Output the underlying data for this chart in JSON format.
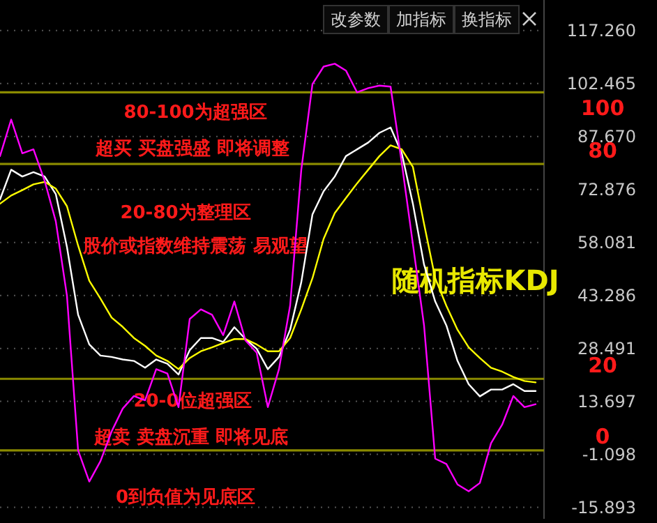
{
  "chart_data": {
    "type": "line",
    "title": "随机指标KDJ",
    "categories": [
      null,
      null,
      null,
      null,
      null,
      null,
      null,
      null,
      null,
      null,
      null,
      null,
      null,
      null,
      null,
      null,
      null,
      null,
      null,
      null,
      null,
      null,
      null,
      null,
      null,
      null,
      null,
      null,
      null,
      null,
      null,
      null,
      null,
      null,
      null,
      null,
      null,
      null,
      null,
      null,
      null,
      null,
      null,
      null,
      null,
      null,
      null,
      null,
      null
    ],
    "series": [
      {
        "color": "#ffffff",
        "values": [
          70.1,
          78.4,
          76.5,
          77.7,
          76.5,
          71.6,
          56.8,
          37.9,
          29.6,
          26.5,
          26.1,
          25.4,
          25.0,
          23.1,
          25.4,
          24.2,
          21.2,
          28.0,
          31.4,
          31.4,
          30.3,
          34.4,
          31.1,
          28.4,
          22.7,
          26.1,
          33.7,
          47.0,
          65.9,
          72.4,
          76.5,
          82.2,
          84.1,
          86.0,
          88.7,
          90.2,
          83.0,
          68.9,
          51.9,
          41.6,
          34.9,
          25.0,
          18.5,
          15.1,
          17.0,
          17.0,
          18.5,
          16.6,
          16.6
        ]
      },
      {
        "color": "#ffff00",
        "values": [
          68.9,
          71.2,
          72.7,
          74.3,
          75.0,
          73.1,
          68.2,
          57.2,
          47.4,
          42.4,
          37.1,
          34.5,
          31.4,
          29.2,
          26.5,
          25.0,
          22.7,
          25.8,
          27.7,
          28.8,
          30.0,
          31.1,
          31.1,
          29.6,
          27.7,
          27.7,
          31.4,
          39.4,
          48.1,
          59.1,
          66.3,
          70.5,
          74.6,
          78.4,
          82.2,
          85.2,
          84.1,
          79.2,
          63.3,
          48.1,
          40.4,
          33.7,
          28.8,
          25.8,
          23.1,
          22.0,
          20.5,
          19.4,
          19.0
        ]
      },
      {
        "color": "#ff00ff",
        "values": [
          82.2,
          92.4,
          83.0,
          84.1,
          75.3,
          64.0,
          43.2,
          0.0,
          -8.7,
          -3.0,
          5.3,
          11.7,
          15.2,
          14.0,
          22.7,
          21.5,
          12.1,
          36.7,
          39.4,
          37.9,
          32.2,
          41.6,
          30.7,
          27.3,
          12.1,
          22.7,
          40.5,
          78.4,
          102.3,
          107.2,
          108.0,
          106.1,
          100.0,
          101.2,
          101.9,
          101.6,
          80.3,
          57.6,
          34.9,
          -2.3,
          -3.8,
          -9.5,
          -11.4,
          -9.1,
          2.0,
          7.2,
          15.2,
          12.1,
          12.9
        ]
      }
    ],
    "ylim": [
      -19.1,
      125.8
    ],
    "yticks": [
      {
        "value": 117.26,
        "label": "117.260"
      },
      102.465,
      {
        "value": 87.67,
        "label": "87.670"
      },
      72.876,
      58.081,
      43.286,
      28.491,
      13.697,
      -1.098,
      -15.893
    ],
    "grid": "y",
    "ref_lines": [
      {
        "axis": "y",
        "value": 100,
        "label": "100",
        "color": "#8a8a00"
      },
      {
        "axis": "y",
        "value": 80,
        "label": "80",
        "color": "#8a8a00"
      },
      {
        "axis": "y",
        "value": 20,
        "label": "20",
        "color": "#8a8a00"
      },
      {
        "axis": "y",
        "value": 0,
        "label": "0",
        "color": "#8a8a00"
      }
    ],
    "annotations": [
      "改参数",
      "加指标",
      "换指标",
      "80-100为超强区",
      "超买 买盘强盛 即将调整",
      "20-80为整理区",
      "股价或指数维持震荡 易观望",
      "20-0位超强区",
      "超卖 卖盘沉重 即将见底",
      "0到负值为见底区"
    ]
  }
}
